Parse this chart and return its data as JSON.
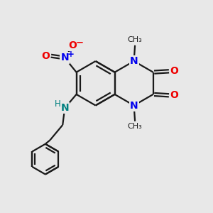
{
  "background_color": "#e8e8e8",
  "bond_color": "#1a1a1a",
  "N_color": "#0000ee",
  "O_color": "#ee0000",
  "NH_color": "#008080",
  "figsize": [
    3.0,
    3.0
  ],
  "dpi": 100,
  "xlim": [
    0,
    10
  ],
  "ylim": [
    0,
    10
  ]
}
